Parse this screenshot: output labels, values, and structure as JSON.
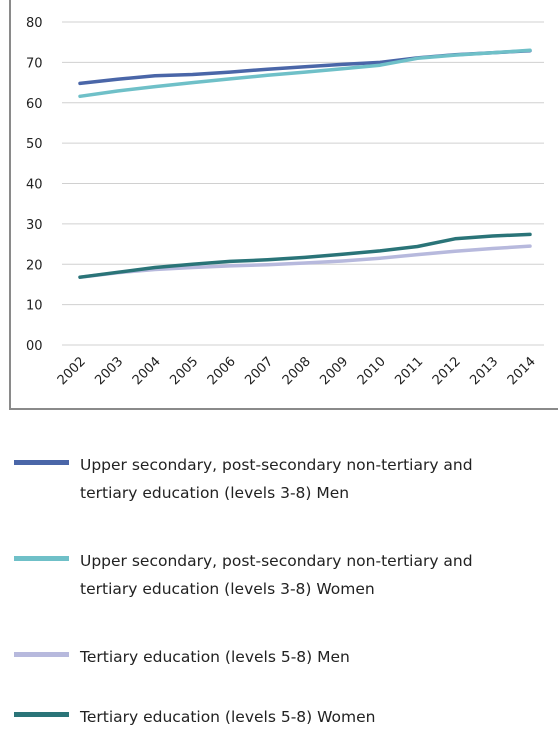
{
  "chart_data": {
    "type": "line",
    "title": "",
    "xlabel": "",
    "ylabel": "",
    "x": [
      "2002",
      "2003",
      "2004",
      "2005",
      "2006",
      "2007",
      "2008",
      "2009",
      "2010",
      "2011",
      "2012",
      "2013",
      "2014"
    ],
    "ylim": [
      0,
      80
    ],
    "yticks": [
      "00",
      "10",
      "20",
      "30",
      "40",
      "50",
      "60",
      "70",
      "80"
    ],
    "grid": true,
    "legend_position": "bottom",
    "series": [
      {
        "name": "Upper secondary, post-secondary non-tertiary and tertiary education (levels 3-8) Men",
        "color": "#4a66a8",
        "values": [
          64.8,
          65.8,
          66.7,
          67.0,
          67.6,
          68.3,
          68.9,
          69.5,
          70.0,
          71.1,
          71.9,
          72.4,
          72.9
        ]
      },
      {
        "name": "Upper secondary, post-secondary non-tertiary and tertiary education (levels 3-8) Women",
        "color": "#6fc0c8",
        "values": [
          61.6,
          62.9,
          64.0,
          65.0,
          65.9,
          66.8,
          67.6,
          68.4,
          69.3,
          71.0,
          71.8,
          72.4,
          73.0
        ]
      },
      {
        "name": "Tertiary education (levels 5-8) Men",
        "color": "#b7b9dd",
        "values": [
          16.8,
          17.9,
          18.7,
          19.2,
          19.6,
          19.9,
          20.3,
          20.8,
          21.5,
          22.4,
          23.2,
          23.9,
          24.5
        ]
      },
      {
        "name": "Tertiary education (levels 5-8) Women",
        "color": "#2a7478",
        "values": [
          16.8,
          18.0,
          19.2,
          20.0,
          20.7,
          21.1,
          21.7,
          22.5,
          23.3,
          24.4,
          26.3,
          27.0,
          27.4
        ]
      }
    ]
  }
}
